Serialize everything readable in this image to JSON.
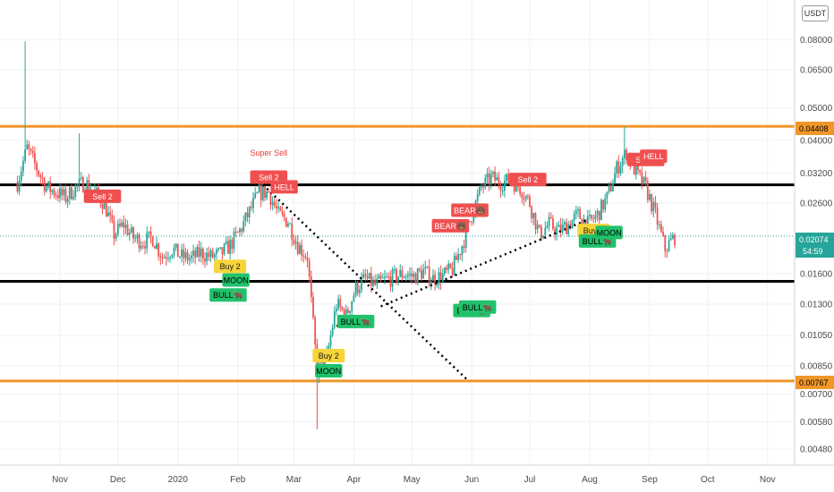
{
  "currency_badge": "USDT",
  "price_tags": {
    "top_level": "0.04408",
    "current_price": "0.02074",
    "countdown": "54:59",
    "bottom_level": "0.00767"
  },
  "chart_data": {
    "type": "candlestick",
    "y_scale": "log",
    "ylim": [
      0.0043,
      0.105
    ],
    "y_ticks": [
      "0.08000",
      "0.06500",
      "0.05000",
      "0.04000",
      "0.03200",
      "0.02600",
      "0.02074",
      "0.01600",
      "0.01300",
      "0.01050",
      "0.00850",
      "0.00700",
      "0.00580",
      "0.00480"
    ],
    "x_ticks": [
      "Nov",
      "Dec",
      "2020",
      "Feb",
      "Mar",
      "Apr",
      "May",
      "Jun",
      "Jul",
      "Aug",
      "Sep",
      "Oct",
      "Nov"
    ],
    "grid": true,
    "horizontal_levels": [
      {
        "value": 0.04408,
        "color": "#f0972a"
      },
      {
        "value": 0.0295,
        "color": "#000000"
      },
      {
        "value": 0.0152,
        "color": "#000000"
      },
      {
        "value": 0.00767,
        "color": "#f0972a"
      }
    ],
    "current_price_line": 0.02074,
    "close_path": [
      [
        "2019-10-10",
        0.03
      ],
      [
        "2019-10-15",
        0.038
      ],
      [
        "2019-10-20",
        0.033
      ],
      [
        "2019-10-25",
        0.029
      ],
      [
        "2019-10-30",
        0.028
      ],
      [
        "2019-11-04",
        0.027
      ],
      [
        "2019-11-09",
        0.029
      ],
      [
        "2019-11-14",
        0.03
      ],
      [
        "2019-11-19",
        0.028
      ],
      [
        "2019-11-24",
        0.026
      ],
      [
        "2019-11-29",
        0.021
      ],
      [
        "2019-12-04",
        0.0225
      ],
      [
        "2019-12-09",
        0.0205
      ],
      [
        "2019-12-14",
        0.02
      ],
      [
        "2019-12-19",
        0.0205
      ],
      [
        "2019-12-24",
        0.018
      ],
      [
        "2019-12-29",
        0.019
      ],
      [
        "2020-01-03",
        0.018
      ],
      [
        "2020-01-08",
        0.0178
      ],
      [
        "2020-01-13",
        0.0185
      ],
      [
        "2020-01-18",
        0.018
      ],
      [
        "2020-01-23",
        0.0183
      ],
      [
        "2020-01-28",
        0.0195
      ],
      [
        "2020-02-02",
        0.0215
      ],
      [
        "2020-02-07",
        0.0245
      ],
      [
        "2020-02-12",
        0.028
      ],
      [
        "2020-02-17",
        0.028
      ],
      [
        "2020-02-22",
        0.024
      ],
      [
        "2020-02-27",
        0.023
      ],
      [
        "2020-03-03",
        0.0195
      ],
      [
        "2020-03-08",
        0.018
      ],
      [
        "2020-03-13",
        0.0082
      ],
      [
        "2020-03-18",
        0.009
      ],
      [
        "2020-03-23",
        0.013
      ],
      [
        "2020-03-28",
        0.012
      ],
      [
        "2020-04-02",
        0.0145
      ],
      [
        "2020-04-07",
        0.0155
      ],
      [
        "2020-04-12",
        0.0148
      ],
      [
        "2020-04-17",
        0.0153
      ],
      [
        "2020-04-22",
        0.0157
      ],
      [
        "2020-04-27",
        0.016
      ],
      [
        "2020-05-02",
        0.0157
      ],
      [
        "2020-05-07",
        0.0163
      ],
      [
        "2020-05-12",
        0.0155
      ],
      [
        "2020-05-17",
        0.0158
      ],
      [
        "2020-05-22",
        0.0165
      ],
      [
        "2020-05-27",
        0.0195
      ],
      [
        "2020-06-01",
        0.024
      ],
      [
        "2020-06-06",
        0.029
      ],
      [
        "2020-06-11",
        0.031
      ],
      [
        "2020-06-16",
        0.03
      ],
      [
        "2020-06-21",
        0.0305
      ],
      [
        "2020-06-26",
        0.029
      ],
      [
        "2020-07-01",
        0.026
      ],
      [
        "2020-07-06",
        0.021
      ],
      [
        "2020-07-11",
        0.0225
      ],
      [
        "2020-07-16",
        0.0215
      ],
      [
        "2020-07-21",
        0.0225
      ],
      [
        "2020-07-26",
        0.024
      ],
      [
        "2020-07-31",
        0.0225
      ],
      [
        "2020-08-05",
        0.024
      ],
      [
        "2020-08-10",
        0.027
      ],
      [
        "2020-08-15",
        0.033
      ],
      [
        "2020-08-20",
        0.037
      ],
      [
        "2020-08-25",
        0.032
      ],
      [
        "2020-08-30",
        0.029
      ],
      [
        "2020-09-04",
        0.024
      ],
      [
        "2020-09-09",
        0.019
      ],
      [
        "2020-09-14",
        0.0207
      ]
    ],
    "wick_spikes": [
      {
        "date": "2019-10-14",
        "high": 0.079
      },
      {
        "date": "2019-11-11",
        "high": 0.042
      },
      {
        "date": "2020-03-13",
        "low": 0.0055
      },
      {
        "date": "2020-08-19",
        "high": 0.044
      }
    ],
    "trend_lines": [
      {
        "from": [
          "2020-02-14",
          0.0295
        ],
        "to": [
          "2020-05-30",
          0.0077
        ]
      },
      {
        "from": [
          "2020-03-23",
          0.0112
        ],
        "to": [
          "2020-03-24",
          0.0112
        ]
      },
      {
        "from": [
          "2020-04-15",
          0.0128
        ],
        "to": [
          "2020-07-31",
          0.0232
        ]
      }
    ],
    "signals": [
      {
        "label": "Sell 2",
        "kind": "sell",
        "date": "2019-11-23",
        "price": 0.0272
      },
      {
        "label": "Super Sell",
        "kind": "text",
        "date": "2020-02-17",
        "price": 0.036
      },
      {
        "label": "Sell 2",
        "kind": "sell",
        "date": "2020-02-17",
        "price": 0.031
      },
      {
        "label": "HELL",
        "kind": "sell",
        "date": "2020-02-25",
        "price": 0.029
      },
      {
        "label": "Buy 2",
        "kind": "buy",
        "date": "2020-01-28",
        "price": 0.0168
      },
      {
        "label": "MOON",
        "kind": "moon",
        "date": "2020-01-31",
        "price": 0.0153
      },
      {
        "label": "BULL🐂",
        "kind": "bull",
        "date": "2020-01-27",
        "price": 0.0138
      },
      {
        "label": "BULL🐂",
        "kind": "bull",
        "date": "2020-04-02",
        "price": 0.0115
      },
      {
        "label": "Buy 2",
        "kind": "buy",
        "date": "2020-03-19",
        "price": 0.0091
      },
      {
        "label": "MOON",
        "kind": "moon",
        "date": "2020-03-19",
        "price": 0.0082
      },
      {
        "label": "BEAR🐻",
        "kind": "sell",
        "date": "2020-05-21",
        "price": 0.0222
      },
      {
        "label": "BEAR🐻",
        "kind": "sell",
        "date": "2020-05-31",
        "price": 0.0247
      },
      {
        "label": "BULL🐂",
        "kind": "bull",
        "date": "2020-06-01",
        "price": 0.0124
      },
      {
        "label": "BULL🐂",
        "kind": "bull",
        "date": "2020-06-04",
        "price": 0.0127
      },
      {
        "label": "Sell 2",
        "kind": "sell",
        "date": "2020-06-30",
        "price": 0.0305
      },
      {
        "label": "Buy 2",
        "kind": "buy",
        "date": "2020-08-03",
        "price": 0.0215
      },
      {
        "label": "BULL🐂",
        "kind": "bull",
        "date": "2020-08-05",
        "price": 0.02
      },
      {
        "label": "MOON",
        "kind": "moon",
        "date": "2020-08-11",
        "price": 0.0212
      },
      {
        "label": "Sell 2",
        "kind": "sell",
        "date": "2020-08-30",
        "price": 0.035
      },
      {
        "label": "HELL",
        "kind": "sell",
        "date": "2020-09-03",
        "price": 0.0358
      }
    ]
  },
  "colors": {
    "up": "#26a69a",
    "down": "#ef5350",
    "orange_level": "#f0972a",
    "sell_tag": "#f04f4f",
    "buy_tag": "#f7d53a",
    "bull_tag": "#21c16b",
    "moon_tag": "#21c16b",
    "price_line": "#26a69a"
  }
}
